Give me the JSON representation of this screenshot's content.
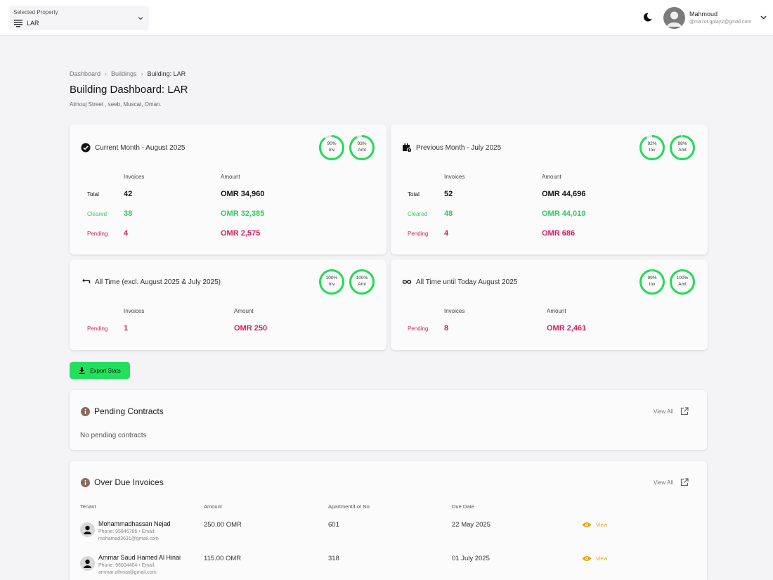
{
  "header": {
    "property_caption": "Selected Property",
    "property_value": "LAR",
    "user_name": "Mahmoud",
    "user_email": "@ma7ot.gplay2@gmail.com"
  },
  "breadcrumb": [
    "Dashboard",
    "Buildings",
    "Building: LAR"
  ],
  "page": {
    "title": "Building Dashboard: LAR",
    "subtitle": "Almouj Street , seeb, Muscat, Oman."
  },
  "cards": {
    "current": {
      "title": "Current Month - August 2025",
      "ring_inv": "90%",
      "ring_inv_label": "Inv",
      "ring_inv_value": 90,
      "ring_amt": "93%",
      "ring_amt_label": "Amt",
      "ring_amt_value": 93,
      "col_invoices": "Invoices",
      "col_amount": "Amount",
      "rows": [
        {
          "label": "Total",
          "count": "42",
          "amount": "OMR 34,960"
        },
        {
          "label": "Cleared",
          "count": "38",
          "amount": "OMR 32,385"
        },
        {
          "label": "Pending",
          "count": "4",
          "amount": "OMR 2,575"
        }
      ]
    },
    "previous": {
      "title": "Previous Month - July 2025",
      "ring_inv": "92%",
      "ring_inv_label": "Inv",
      "ring_inv_value": 92,
      "ring_amt": "98%",
      "ring_amt_label": "Amt",
      "ring_amt_value": 98,
      "col_invoices": "Invoices",
      "col_amount": "Amount",
      "rows": [
        {
          "label": "Total",
          "count": "52",
          "amount": "OMR 44,696"
        },
        {
          "label": "Cleared",
          "count": "48",
          "amount": "OMR 44,010"
        },
        {
          "label": "Pending",
          "count": "4",
          "amount": "OMR 686"
        }
      ]
    },
    "alltime": {
      "title": "All Time (excl. August 2025 & July 2025)",
      "ring_inv": "100%",
      "ring_inv_label": "Inv",
      "ring_inv_value": 100,
      "ring_amt": "100%",
      "ring_amt_label": "Amt",
      "ring_amt_value": 100,
      "col_invoices": "Invoices",
      "col_amount": "Amount",
      "rows": [
        {
          "label": "Pending",
          "count": "1",
          "amount": "OMR 250"
        }
      ]
    },
    "untiltoday": {
      "title": "All Time until Today August 2025",
      "ring_inv": "99%",
      "ring_inv_label": "Inv",
      "ring_inv_value": 99,
      "ring_amt": "100%",
      "ring_amt_label": "Amt",
      "ring_amt_value": 100,
      "col_invoices": "Invoices",
      "col_amount": "Amount",
      "rows": [
        {
          "label": "Pending",
          "count": "8",
          "amount": "OMR 2,461"
        }
      ]
    }
  },
  "export_label": "Export Stats",
  "pending_contracts": {
    "title": "Pending Contracts",
    "view_all": "View All",
    "empty": "No pending contracts"
  },
  "overdue": {
    "title": "Over Due Invoices",
    "view_all": "View All",
    "columns": [
      "Tenant",
      "Amount",
      "Apartment/Lot No",
      "Due Date"
    ],
    "rows": [
      {
        "name": "Mohammadhassan Nejad",
        "meta": "Phone: 95846786 • Email: mohamad3631@gmail.com",
        "amount": "250.00 OMR",
        "apt": "601",
        "due": "22 May 2025",
        "action": "View"
      },
      {
        "name": "Ammar Saud Hamed Al Hinai",
        "meta": "Phone: 96004404 • Email: ammar.alhinai@gmail.com",
        "amount": "115.00 OMR",
        "apt": "318",
        "due": "01 July 2025",
        "action": "View"
      }
    ]
  },
  "colors": {
    "green": "#2ecc5f",
    "pink": "#e0195f",
    "ring_green": "#22dd55",
    "view_orange": "#e8a10b"
  }
}
